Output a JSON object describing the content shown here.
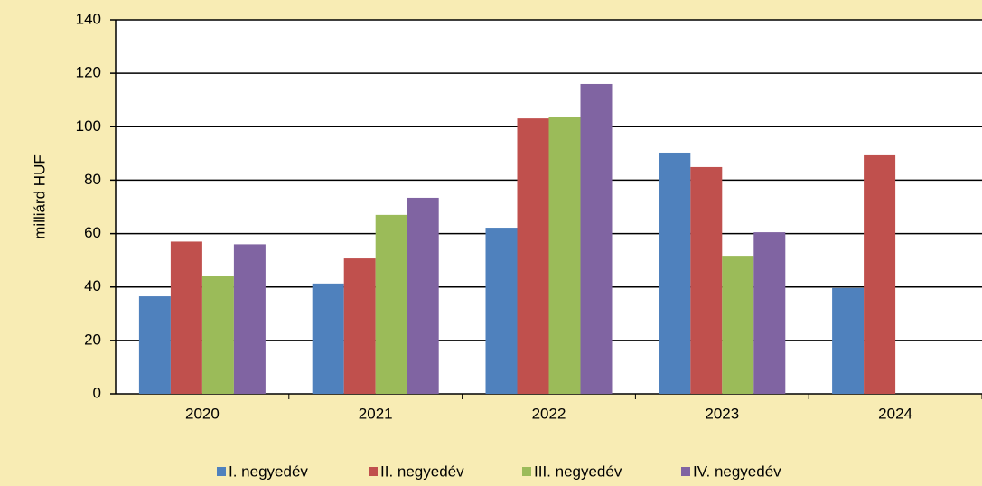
{
  "chart_data": {
    "type": "bar",
    "y_label": "milliárd HUF",
    "categories": [
      "2020",
      "2021",
      "2022",
      "2023",
      "2024"
    ],
    "series": [
      {
        "name": "I. negyedév",
        "color": "#4f81bd",
        "values": [
          36.5,
          41.3,
          62.2,
          90.3,
          39.6
        ]
      },
      {
        "name": "II. negyedév",
        "color": "#c0504d",
        "values": [
          57,
          50.7,
          103.1,
          84.9,
          89.3
        ]
      },
      {
        "name": "III. negyedév",
        "color": "#9bbb59",
        "values": [
          44,
          67,
          103.5,
          51.7,
          null
        ]
      },
      {
        "name": "IV. negyedév",
        "color": "#8064a2",
        "values": [
          56,
          73.4,
          116,
          60.5,
          null
        ]
      }
    ],
    "ylim": [
      0,
      140
    ],
    "yticks": [
      0,
      20,
      40,
      60,
      80,
      100,
      120,
      140
    ],
    "grid": true,
    "legend": "bottom"
  }
}
